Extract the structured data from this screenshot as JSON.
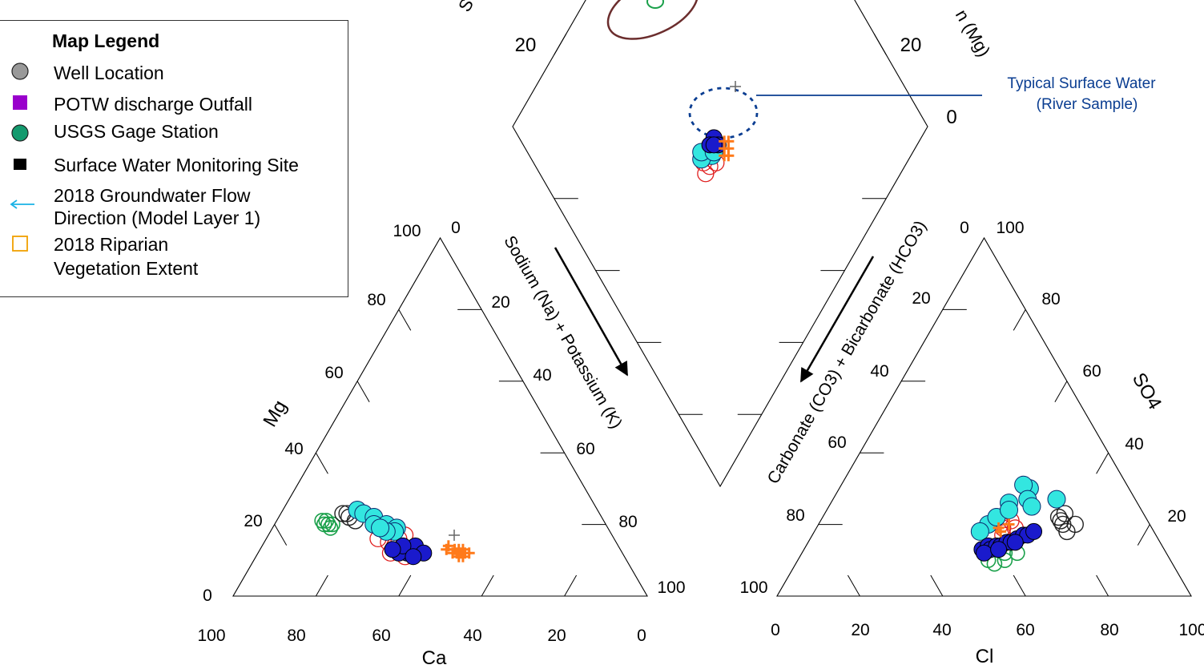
{
  "legend": {
    "title": "Map Legend",
    "items": [
      {
        "label": "Well Location",
        "symbol": "circle",
        "color": "#999999"
      },
      {
        "label": "POTW discharge Outfall",
        "symbol": "square",
        "color": "#9900cc"
      },
      {
        "label": "USGS Gage Station",
        "symbol": "circle",
        "color": "#139a6e"
      },
      {
        "label": "Surface Water Monitoring Site",
        "symbol": "square",
        "color": "#000000"
      },
      {
        "label": "2018 Groundwater Flow Direction (Model Layer 1)",
        "line1": "2018 Groundwater Flow",
        "line2": "Direction (Model Layer 1)",
        "symbol": "arrow-left",
        "color": "#1ab2e6"
      },
      {
        "label": "2018 Riparian Vegetation Extent",
        "line1": "2018 Riparian",
        "line2": "Vegetation Extent",
        "symbol": "square-outline",
        "color": "#f0a000"
      }
    ]
  },
  "axes": {
    "cation_bottom_label": "Ca",
    "cation_left_label": "Mg",
    "anion_bottom_label": "Cl",
    "anion_right_label": "SO4",
    "diamond_left_label": "Sodium (Na) + Potassium (K)",
    "diamond_right_label": "Carbonate (CO3) + Bicarbonate (HCO3)",
    "diamond_top_left_label_partial": "S",
    "diamond_top_right_label_partial": "n (Mg)"
  },
  "tick_labels": {
    "cation_bottom": [
      "100",
      "80",
      "60",
      "40",
      "20",
      "0"
    ],
    "cation_left": [
      "0",
      "20",
      "40",
      "60",
      "80",
      "100"
    ],
    "cation_right": [
      "0",
      "20",
      "40",
      "60",
      "80",
      "100"
    ],
    "anion_bottom": [
      "0",
      "20",
      "40",
      "60",
      "80",
      "100"
    ],
    "anion_left": [
      "0",
      "20",
      "40",
      "60",
      "80",
      "100"
    ],
    "anion_right": [
      "100",
      "80",
      "60",
      "40",
      "20"
    ],
    "diamond_top_left": "20",
    "diamond_top_right": [
      "20",
      "0"
    ]
  },
  "annotation": {
    "line1": "Typical Surface Water",
    "line2": "(River Sample)",
    "color": "#0a3d91"
  },
  "colors": {
    "cyan": "#33e6e0",
    "blue": "#1a1acc",
    "orange": "#ff7a1a",
    "red": "#e02020",
    "green": "#1aa04a",
    "black": "#222222",
    "brown": "#6b2d2d",
    "grey_plus": "#666666"
  },
  "chart_data": {
    "type": "scatter",
    "subtype": "piper-diagram",
    "series": [
      {
        "name": "cyan",
        "region": "cation",
        "points": [
          [
            58,
            24
          ],
          [
            57,
            23
          ],
          [
            55,
            22
          ],
          [
            53,
            20
          ],
          [
            51,
            19
          ],
          [
            52,
            18
          ],
          [
            54,
            18
          ],
          [
            56,
            20
          ],
          [
            55,
            19
          ]
        ]
      },
      {
        "name": "blue",
        "region": "cation",
        "points": [
          [
            52,
            12
          ],
          [
            51,
            13
          ],
          [
            50,
            12
          ],
          [
            53,
            13
          ],
          [
            54,
            12
          ],
          [
            49,
            14
          ],
          [
            52,
            14
          ],
          [
            48,
            12
          ],
          [
            51,
            11
          ],
          [
            55,
            13
          ]
        ]
      },
      {
        "name": "red",
        "region": "cation",
        "points": [
          [
            56,
            12
          ],
          [
            54,
            14
          ],
          [
            52,
            16
          ],
          [
            57,
            16
          ],
          [
            53,
            11
          ],
          [
            55,
            15
          ],
          [
            50,
            17
          ]
        ]
      },
      {
        "name": "orange",
        "region": "cation",
        "points": [
          [
            41,
            14
          ],
          [
            40,
            13
          ],
          [
            39,
            12
          ],
          [
            38,
            12
          ],
          [
            40,
            11
          ],
          [
            42,
            13
          ],
          [
            39,
            11
          ],
          [
            37,
            12
          ],
          [
            41,
            12
          ],
          [
            38,
            13
          ],
          [
            40,
            12
          ],
          [
            39,
            13
          ]
        ]
      },
      {
        "name": "green",
        "region": "cation",
        "points": [
          [
            67,
            21
          ],
          [
            68,
            20
          ],
          [
            67,
            19
          ],
          [
            66,
            20
          ],
          [
            68,
            21
          ],
          [
            67,
            20
          ]
        ]
      },
      {
        "name": "black",
        "region": "cation",
        "points": [
          [
            62,
            23
          ],
          [
            61,
            22
          ],
          [
            60,
            21
          ],
          [
            61,
            23
          ]
        ]
      },
      {
        "name": "cyan",
        "region": "anion",
        "points": [
          [
            43,
            26
          ],
          [
            46,
            30
          ],
          [
            44,
            31
          ],
          [
            47,
            27
          ],
          [
            41,
            20
          ],
          [
            42,
            22
          ],
          [
            49,
            25
          ],
          [
            54,
            27
          ],
          [
            40,
            18
          ],
          [
            44,
            24
          ]
        ]
      },
      {
        "name": "blue",
        "region": "anion",
        "points": [
          [
            43,
            13
          ],
          [
            44,
            14
          ],
          [
            45,
            13
          ],
          [
            46,
            14
          ],
          [
            47,
            14
          ],
          [
            48,
            15
          ],
          [
            49,
            15
          ],
          [
            50,
            16
          ],
          [
            51,
            17
          ],
          [
            52,
            17
          ],
          [
            53,
            18
          ],
          [
            44,
            12
          ],
          [
            47,
            13
          ],
          [
            50,
            15
          ]
        ]
      },
      {
        "name": "red",
        "region": "anion",
        "points": [
          [
            44,
            20
          ],
          [
            45,
            19
          ],
          [
            46,
            21
          ],
          [
            48,
            19
          ],
          [
            43,
            22
          ],
          [
            46,
            17
          ]
        ]
      },
      {
        "name": "green",
        "region": "anion",
        "points": [
          [
            46,
            10
          ],
          [
            48,
            9
          ],
          [
            50,
            10
          ],
          [
            52,
            12
          ],
          [
            49,
            12
          ]
        ]
      },
      {
        "name": "black",
        "region": "anion",
        "points": [
          [
            57,
            22
          ],
          [
            58,
            21
          ],
          [
            59,
            20
          ],
          [
            61,
            18
          ],
          [
            58,
            23
          ],
          [
            62,
            20
          ]
        ]
      },
      {
        "name": "orange",
        "region": "anion",
        "points": [
          [
            45,
            18
          ],
          [
            46,
            20
          ],
          [
            44,
            19
          ]
        ]
      },
      {
        "name": "cyan",
        "region": "diamond",
        "points": [
          [
            50,
            57
          ],
          [
            50,
            58
          ],
          [
            51,
            57
          ],
          [
            51,
            56
          ],
          [
            52,
            56
          ],
          [
            50,
            59
          ],
          [
            49,
            58
          ],
          [
            52,
            55
          ]
        ]
      },
      {
        "name": "blue",
        "region": "diamond",
        "points": [
          [
            50,
            53
          ],
          [
            52,
            53
          ],
          [
            50,
            55
          ],
          [
            51,
            54
          ]
        ]
      },
      {
        "name": "orange",
        "region": "diamond",
        "points": [
          [
            53,
            51
          ],
          [
            54,
            52
          ],
          [
            55,
            53
          ],
          [
            55,
            51
          ],
          [
            54,
            50
          ],
          [
            56,
            52
          ]
        ]
      },
      {
        "name": "red",
        "region": "diamond",
        "points": [
          [
            53,
            60
          ],
          [
            53,
            58
          ],
          [
            54,
            56
          ],
          [
            51,
            59
          ]
        ]
      }
    ]
  }
}
